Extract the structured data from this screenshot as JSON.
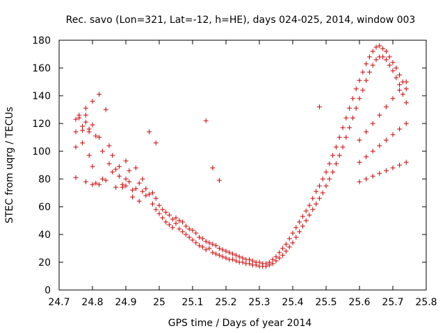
{
  "chart_data": {
    "type": "scatter",
    "title": "Rec. savo (Lon=321, Lat=-12, h=HE), days 024-025, 2014, window 003",
    "xlabel": "GPS time / Days of year 2014",
    "ylabel": "STEC from uqrg / TECUs",
    "xlim": [
      24.7,
      25.8
    ],
    "ylim": [
      0,
      180
    ],
    "xticks": [
      "24.7",
      "24.8",
      "24.9",
      "25",
      "25.1",
      "25.2",
      "25.3",
      "25.4",
      "25.5",
      "25.6",
      "25.7",
      "25.8"
    ],
    "yticks": [
      "0",
      "20",
      "40",
      "60",
      "80",
      "100",
      "120",
      "140",
      "160",
      "180"
    ],
    "grid": false,
    "legend": "none",
    "marker": "+",
    "color": "#cc0000",
    "points": [
      [
        24.75,
        81
      ],
      [
        24.75,
        103
      ],
      [
        24.75,
        114
      ],
      [
        24.75,
        123
      ],
      [
        24.76,
        126
      ],
      [
        24.76,
        124
      ],
      [
        24.77,
        106
      ],
      [
        24.77,
        115
      ],
      [
        24.77,
        118
      ],
      [
        24.78,
        78
      ],
      [
        24.78,
        121
      ],
      [
        24.78,
        126
      ],
      [
        24.78,
        131
      ],
      [
        24.79,
        97
      ],
      [
        24.79,
        114
      ],
      [
        24.79,
        116
      ],
      [
        24.8,
        76
      ],
      [
        24.8,
        89
      ],
      [
        24.8,
        119
      ],
      [
        24.8,
        136
      ],
      [
        24.81,
        77
      ],
      [
        24.81,
        111
      ],
      [
        24.82,
        76
      ],
      [
        24.82,
        110
      ],
      [
        24.82,
        141
      ],
      [
        24.83,
        80
      ],
      [
        24.83,
        100
      ],
      [
        24.84,
        79
      ],
      [
        24.84,
        130
      ],
      [
        24.85,
        91
      ],
      [
        24.85,
        104
      ],
      [
        24.86,
        85
      ],
      [
        24.86,
        97
      ],
      [
        24.87,
        74
      ],
      [
        24.87,
        87
      ],
      [
        24.88,
        82
      ],
      [
        24.88,
        89
      ],
      [
        24.89,
        76
      ],
      [
        24.89,
        74
      ],
      [
        24.9,
        75
      ],
      [
        24.9,
        80
      ],
      [
        24.9,
        93
      ],
      [
        24.91,
        78
      ],
      [
        24.91,
        86
      ],
      [
        24.92,
        72
      ],
      [
        24.92,
        67
      ],
      [
        24.93,
        88
      ],
      [
        24.93,
        73
      ],
      [
        24.94,
        64
      ],
      [
        24.94,
        77
      ],
      [
        24.95,
        71
      ],
      [
        24.95,
        80
      ],
      [
        24.96,
        68
      ],
      [
        24.96,
        73
      ],
      [
        24.97,
        69
      ],
      [
        24.97,
        114
      ],
      [
        24.98,
        62
      ],
      [
        24.98,
        70
      ],
      [
        24.99,
        58
      ],
      [
        24.99,
        66
      ],
      [
        24.99,
        106
      ],
      [
        25.0,
        55
      ],
      [
        25.0,
        61
      ],
      [
        25.01,
        52
      ],
      [
        25.01,
        58
      ],
      [
        25.02,
        49
      ],
      [
        25.02,
        56
      ],
      [
        25.03,
        47
      ],
      [
        25.03,
        54
      ],
      [
        25.04,
        45
      ],
      [
        25.04,
        51
      ],
      [
        25.05,
        48
      ],
      [
        25.05,
        52
      ],
      [
        25.06,
        44
      ],
      [
        25.06,
        50
      ],
      [
        25.07,
        42
      ],
      [
        25.07,
        49
      ],
      [
        25.08,
        40
      ],
      [
        25.08,
        46
      ],
      [
        25.09,
        38
      ],
      [
        25.09,
        44
      ],
      [
        25.1,
        36
      ],
      [
        25.1,
        43
      ],
      [
        25.11,
        34
      ],
      [
        25.11,
        41
      ],
      [
        25.12,
        32
      ],
      [
        25.12,
        38
      ],
      [
        25.13,
        31
      ],
      [
        25.13,
        37
      ],
      [
        25.14,
        29
      ],
      [
        25.14,
        35
      ],
      [
        25.14,
        122
      ],
      [
        25.15,
        30
      ],
      [
        25.15,
        34
      ],
      [
        25.16,
        27
      ],
      [
        25.16,
        33
      ],
      [
        25.16,
        88
      ],
      [
        25.17,
        26
      ],
      [
        25.17,
        32
      ],
      [
        25.18,
        25
      ],
      [
        25.18,
        30
      ],
      [
        25.18,
        79
      ],
      [
        25.19,
        24
      ],
      [
        25.19,
        29
      ],
      [
        25.2,
        23
      ],
      [
        25.2,
        28
      ],
      [
        25.21,
        22
      ],
      [
        25.21,
        27
      ],
      [
        25.22,
        22
      ],
      [
        25.22,
        26
      ],
      [
        25.23,
        21
      ],
      [
        25.23,
        25
      ],
      [
        25.24,
        20
      ],
      [
        25.24,
        24
      ],
      [
        25.25,
        20
      ],
      [
        25.25,
        23
      ],
      [
        25.26,
        19
      ],
      [
        25.26,
        22
      ],
      [
        25.27,
        19
      ],
      [
        25.27,
        22
      ],
      [
        25.28,
        18
      ],
      [
        25.28,
        21
      ],
      [
        25.29,
        18
      ],
      [
        25.29,
        20
      ],
      [
        25.3,
        17
      ],
      [
        25.3,
        20
      ],
      [
        25.31,
        17
      ],
      [
        25.31,
        19
      ],
      [
        25.32,
        17
      ],
      [
        25.32,
        19
      ],
      [
        25.33,
        18
      ],
      [
        25.33,
        20
      ],
      [
        25.34,
        19
      ],
      [
        25.34,
        22
      ],
      [
        25.35,
        21
      ],
      [
        25.35,
        24
      ],
      [
        25.36,
        23
      ],
      [
        25.36,
        27
      ],
      [
        25.37,
        25
      ],
      [
        25.37,
        30
      ],
      [
        25.38,
        28
      ],
      [
        25.38,
        33
      ],
      [
        25.39,
        31
      ],
      [
        25.39,
        37
      ],
      [
        25.4,
        34
      ],
      [
        25.4,
        41
      ],
      [
        25.41,
        38
      ],
      [
        25.41,
        45
      ],
      [
        25.42,
        42
      ],
      [
        25.42,
        49
      ],
      [
        25.43,
        46
      ],
      [
        25.43,
        53
      ],
      [
        25.44,
        50
      ],
      [
        25.44,
        57
      ],
      [
        25.45,
        54
      ],
      [
        25.45,
        61
      ],
      [
        25.46,
        58
      ],
      [
        25.46,
        66
      ],
      [
        25.47,
        62
      ],
      [
        25.47,
        71
      ],
      [
        25.48,
        66
      ],
      [
        25.48,
        75
      ],
      [
        25.48,
        132
      ],
      [
        25.49,
        70
      ],
      [
        25.49,
        80
      ],
      [
        25.5,
        75
      ],
      [
        25.5,
        85
      ],
      [
        25.51,
        80
      ],
      [
        25.51,
        91
      ],
      [
        25.52,
        85
      ],
      [
        25.52,
        97
      ],
      [
        25.53,
        91
      ],
      [
        25.53,
        103
      ],
      [
        25.54,
        97
      ],
      [
        25.54,
        110
      ],
      [
        25.55,
        103
      ],
      [
        25.55,
        117
      ],
      [
        25.56,
        110
      ],
      [
        25.56,
        124
      ],
      [
        25.57,
        117
      ],
      [
        25.57,
        131
      ],
      [
        25.58,
        124
      ],
      [
        25.58,
        138
      ],
      [
        25.59,
        131
      ],
      [
        25.59,
        145
      ],
      [
        25.6,
        138
      ],
      [
        25.6,
        151
      ],
      [
        25.61,
        144
      ],
      [
        25.61,
        157
      ],
      [
        25.62,
        151
      ],
      [
        25.62,
        163
      ],
      [
        25.63,
        157
      ],
      [
        25.63,
        168
      ],
      [
        25.64,
        162
      ],
      [
        25.64,
        172
      ],
      [
        25.65,
        166
      ],
      [
        25.65,
        175
      ],
      [
        25.66,
        168
      ],
      [
        25.66,
        176
      ],
      [
        25.67,
        168
      ],
      [
        25.67,
        174
      ],
      [
        25.68,
        166
      ],
      [
        25.68,
        172
      ],
      [
        25.69,
        162
      ],
      [
        25.69,
        168
      ],
      [
        25.7,
        158
      ],
      [
        25.7,
        164
      ],
      [
        25.71,
        153
      ],
      [
        25.71,
        160
      ],
      [
        25.72,
        148
      ],
      [
        25.72,
        155
      ],
      [
        25.73,
        141
      ],
      [
        25.73,
        150
      ],
      [
        25.74,
        135
      ],
      [
        25.74,
        145
      ],
      [
        25.6,
        78
      ],
      [
        25.62,
        80
      ],
      [
        25.64,
        82
      ],
      [
        25.66,
        84
      ],
      [
        25.68,
        86
      ],
      [
        25.7,
        88
      ],
      [
        25.72,
        90
      ],
      [
        25.74,
        92
      ],
      [
        25.6,
        92
      ],
      [
        25.62,
        96
      ],
      [
        25.64,
        100
      ],
      [
        25.66,
        104
      ],
      [
        25.68,
        108
      ],
      [
        25.7,
        112
      ],
      [
        25.72,
        116
      ],
      [
        25.74,
        120
      ],
      [
        25.6,
        108
      ],
      [
        25.62,
        114
      ],
      [
        25.64,
        120
      ],
      [
        25.66,
        126
      ],
      [
        25.68,
        132
      ],
      [
        25.7,
        138
      ],
      [
        25.72,
        144
      ],
      [
        25.74,
        150
      ]
    ]
  }
}
